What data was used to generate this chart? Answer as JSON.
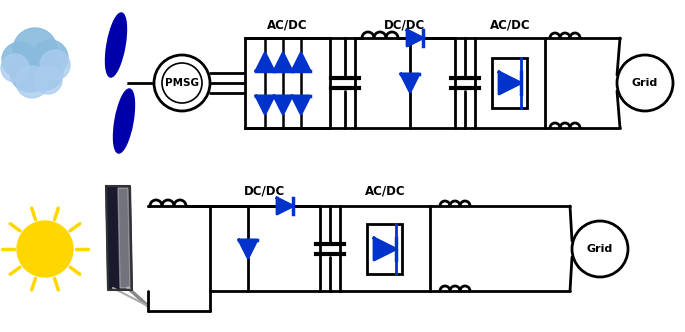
{
  "bg_color": "#ffffff",
  "line_color": "#000000",
  "blue": "#0033cc",
  "figsize": [
    6.85,
    3.32
  ],
  "dpi": 100,
  "labels": {
    "acdc1": "AC/DC",
    "dcdc1": "DC/DC",
    "acdc2": "AC/DC",
    "pmsg": "PMSG",
    "grid1": "Grid",
    "dcdc2": "DC/DC",
    "acdc3": "AC/DC",
    "grid2": "Grid"
  }
}
